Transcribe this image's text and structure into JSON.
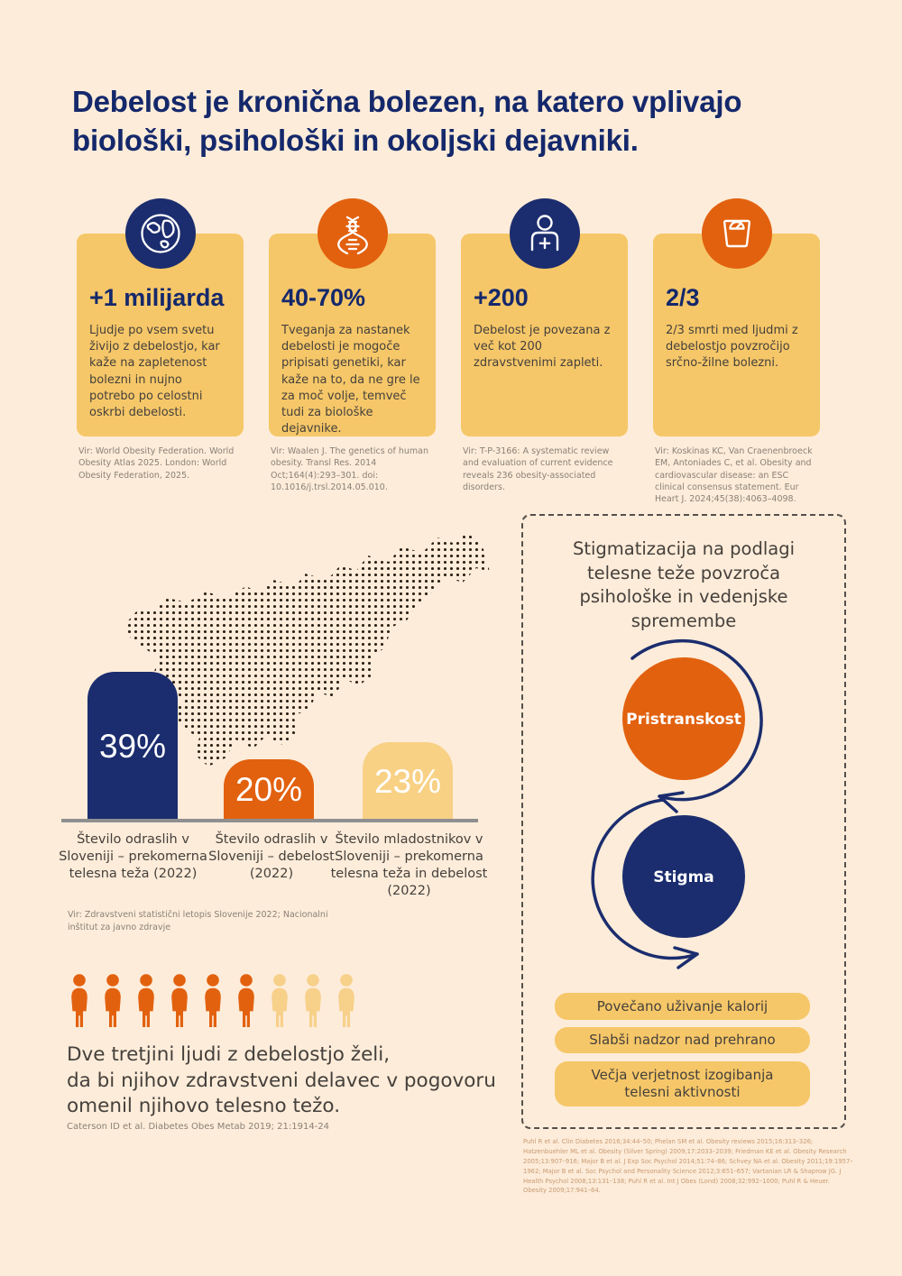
{
  "page": {
    "title": "Debelost je kronična bolezen, na katero vplivajo\nbiološki, psihološki in okoljski dejavniki."
  },
  "colors": {
    "background": "#fdecd9",
    "navy": "#1b2d6e",
    "orange": "#e2610f",
    "gold": "#f6c768",
    "light_gold": "#f8d185",
    "text_dark": "#45403c",
    "text_muted": "#8a8178"
  },
  "stat_cards": [
    {
      "icon": "globe-icon",
      "headline": "+1 milijarda",
      "body": "Ljudje po vsem svetu živijo z debelostjo, kar kaže na zapletenost bolezni in nujno potrebo po celostni oskrbi debelosti.",
      "source": "Vir: World Obesity Federation. World Obesity Atlas 2025. London: World Obesity Federation, 2025."
    },
    {
      "icon": "dna-icon",
      "headline": "40-70%",
      "body": "Tveganja za nastanek debelosti je mogoče pripisati genetiki, kar kaže na to, da ne gre le za moč volje, temveč tudi za biološke dejavnike.",
      "source": "Vir: Waalen J. The genetics of human obesity. Transl Res. 2014 Oct;164(4):293–301. doi: 10.1016/j.trsl.2014.05.010."
    },
    {
      "icon": "person-plus-icon",
      "headline": "+200",
      "body": "Debelost je povezana z več kot 200 zdravstvenimi zapleti.",
      "source": "Vir: T-P-3166: A systematic review and evaluation of current evidence reveals 236 obesity-associated disorders."
    },
    {
      "icon": "scale-icon",
      "headline": "2/3",
      "body": "2/3 smrti med ljudmi z debelostjo povzročijo srčno-žilne bolezni.",
      "source": "Vir: Koskinas KC, Van Craenenbroeck EM, Antoniades C, et al. Obesity and cardiovascular disease: an ESC clinical consensus statement. Eur Heart J. 2024;45(38):4063–4098."
    }
  ],
  "chart_data": {
    "type": "bar",
    "categories": [
      "Število odraslih v Sloveniji – prekomerna telesna teža (2022)",
      "Število odraslih v Sloveniji – debelost (2022)",
      "Število mladostnikov v Sloveniji – prekomerna telesna teža in debelost (2022)"
    ],
    "values": [
      39,
      20,
      23
    ],
    "value_labels": [
      "39%",
      "20%",
      "23%"
    ],
    "bar_colors": [
      "#1b2d6e",
      "#e2610f",
      "#f8d185"
    ],
    "background_motif": "dotted-map-of-slovenia",
    "source": "Vir: Zdravstveni statistični letopis Slovenije 2022; Nacionalni inštitut za javno zdravje"
  },
  "stigma_panel": {
    "title": "Stigmatizacija na podlagi\ntelesne teže povzroča\npsihološke in vedenjske\nspremembe",
    "cycle": [
      {
        "label": "Pristranskost",
        "color": "#e2610f"
      },
      {
        "label": "Stigma",
        "color": "#1b2d6e"
      }
    ],
    "outcomes": [
      "Povečano uživanje kalorij",
      "Slabši nadzor nad prehrano",
      "Večja verjetnost izogibanja\ntelesni aktivnosti"
    ],
    "references": "Puhl R et al. Clin Diabetes 2016;34:44–50; Phelan SM et al. Obesity reviews 2015;16:313–326; Hatzenbuehler ML et al. Obesity (Silver Spring) 2009;17:2033–2039; Friedman KE et al. Obesity Research 2005;13:907–916; Major B et al. J Exp Soc Psychol 2014;51:74–86; Schvey NA et al. Obesity 2011;19:1957–1962; Major B et al. Soc Psychol and Personality Science 2012;3:651–657; Vartanian LR & Shaprow JG. J Health Psychol 2008;13:131–138; Puhl R et al. Int J Obes (Lond) 2008;32:992–1000; Puhl R & Heuer. Obesity 2009;17:941–64."
  },
  "pictogram": {
    "total": 9,
    "highlighted": 6,
    "highlight_color": "#e2610f",
    "muted_color": "#f7d08a",
    "statement": "Dve tretjini ljudi z debelostjo želi,\nda bi njihov zdravstveni delavec v pogovoru\nomenil njihovo telesno težo.",
    "source": "Caterson ID et al. Diabetes Obes Metab 2019; 21:1914-24"
  }
}
